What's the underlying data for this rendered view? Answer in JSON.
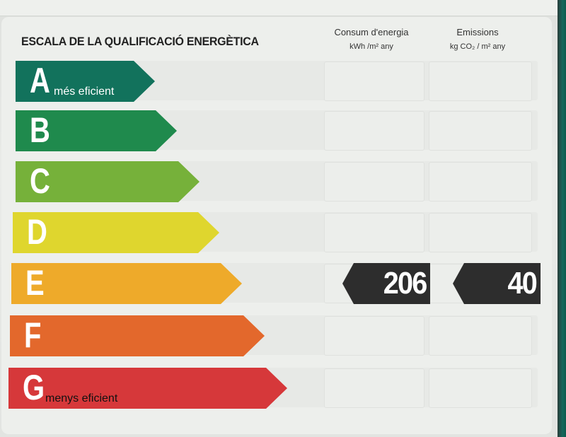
{
  "header": {
    "title": "ESCALA DE LA QUALIFICACIÓ ENERGÈTICA",
    "col1": {
      "label": "Consum d'energia",
      "unit": "kWh /m² any"
    },
    "col2": {
      "label": "Emissions",
      "unit": "kg CO₂ / m² any"
    }
  },
  "classes": [
    {
      "letter": "A",
      "desc": "més eficient",
      "color": "#12725c"
    },
    {
      "letter": "B",
      "desc": "",
      "color": "#1f8a4d"
    },
    {
      "letter": "C",
      "desc": "",
      "color": "#76b13a"
    },
    {
      "letter": "D",
      "desc": "",
      "color": "#dfd62e"
    },
    {
      "letter": "E",
      "desc": "",
      "color": "#eeaa2a"
    },
    {
      "letter": "F",
      "desc": "",
      "color": "#e3682c"
    },
    {
      "letter": "G",
      "desc": "menys eficient",
      "color": "#d6383a"
    }
  ],
  "rating": {
    "class": "E",
    "energy_consumption": "206",
    "emissions": "40",
    "badge_color": "#2d2d2d"
  }
}
